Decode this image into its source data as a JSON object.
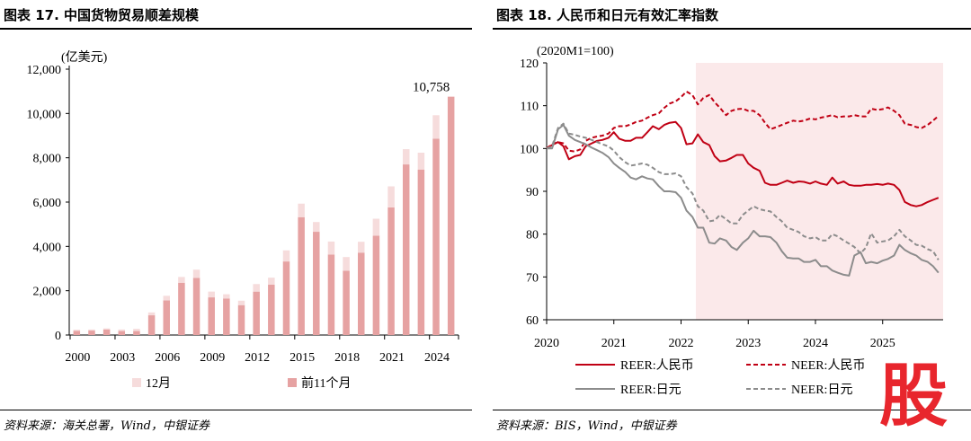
{
  "left": {
    "title": "图表 17. 中国货物贸易顺差规模",
    "source": "资料来源：海关总署，Wind，中银证券"
  },
  "right": {
    "title": "图表 18. 人民币和日元有效汇率指数",
    "source": "资料来源：BIS，Wind，中银证券"
  },
  "watermark": "股",
  "colors": {
    "dec": "#f6dcdc",
    "first11": "#e6a2a2",
    "reer_cny": "#c00014",
    "neer_cny": "#c00014",
    "reer_jpy": "#8c8c8c",
    "neer_jpy": "#8c8c8c",
    "shade": "#fbe9ea"
  },
  "chart_data": [
    {
      "type": "bar",
      "stacked": true,
      "unit_label": "(亿美元)",
      "ylim": [
        0,
        12000
      ],
      "yticks": [
        "0",
        "2,000",
        "4,000",
        "6,000",
        "8,000",
        "10,000",
        "12,000"
      ],
      "ytick_values": [
        0,
        2000,
        4000,
        6000,
        8000,
        10000,
        12000
      ],
      "xtick_labels": [
        "2000",
        "2003",
        "2006",
        "2009",
        "2012",
        "2015",
        "2018",
        "2021",
        "2024"
      ],
      "xtick_index": [
        0,
        3,
        6,
        9,
        12,
        15,
        18,
        21,
        24
      ],
      "categories": [
        "2000",
        "2001",
        "2002",
        "2003",
        "2004",
        "2005",
        "2006",
        "2007",
        "2008",
        "2009",
        "2010",
        "2011",
        "2012",
        "2013",
        "2014",
        "2015",
        "2016",
        "2017",
        "2018",
        "2019",
        "2020",
        "2021",
        "2022",
        "2023",
        "2024",
        "2025"
      ],
      "series": [
        {
          "name": "前11个月",
          "values": [
            190,
            200,
            250,
            180,
            180,
            890,
            1560,
            2360,
            2580,
            1700,
            1650,
            1350,
            1960,
            2270,
            3320,
            5320,
            4660,
            3630,
            2900,
            3720,
            4480,
            5760,
            7700,
            7470,
            8860,
            10758
          ]
        },
        {
          "name": "12月",
          "values": [
            50,
            50,
            50,
            70,
            100,
            130,
            210,
            260,
            370,
            260,
            190,
            200,
            340,
            320,
            500,
            610,
            440,
            590,
            620,
            490,
            770,
            950,
            690,
            760,
            1060,
            0
          ]
        }
      ],
      "legend": [
        "12月",
        "前11个月"
      ],
      "annotation": "10,758"
    },
    {
      "type": "line",
      "unit_label": "(2020M1=100)",
      "ylim": [
        60,
        120
      ],
      "yticks": [
        "60",
        "70",
        "80",
        "90",
        "100",
        "110",
        "120"
      ],
      "ytick_values": [
        60,
        70,
        80,
        90,
        100,
        110,
        120
      ],
      "xlim": [
        2020.0,
        2025.9
      ],
      "xtick_labels": [
        "2020",
        "2021",
        "2022",
        "2023",
        "2024",
        "2025"
      ],
      "xtick_values": [
        2020,
        2021,
        2022,
        2023,
        2024,
        2025
      ],
      "shaded_range": [
        2022.22,
        2025.9
      ],
      "series": [
        {
          "name": "REER:人民币",
          "style": "solid",
          "x": [
            2020.0,
            2020.08,
            2020.17,
            2020.25,
            2020.33,
            2020.42,
            2020.5,
            2020.58,
            2020.67,
            2020.75,
            2020.83,
            2020.92,
            2021.0,
            2021.08,
            2021.17,
            2021.25,
            2021.33,
            2021.42,
            2021.5,
            2021.58,
            2021.67,
            2021.75,
            2021.83,
            2021.92,
            2022.0,
            2022.08,
            2022.17,
            2022.25,
            2022.33,
            2022.42,
            2022.5,
            2022.58,
            2022.67,
            2022.75,
            2022.83,
            2022.92,
            2023.0,
            2023.08,
            2023.17,
            2023.25,
            2023.33,
            2023.42,
            2023.5,
            2023.58,
            2023.67,
            2023.75,
            2023.83,
            2023.92,
            2024.0,
            2024.08,
            2024.17,
            2024.25,
            2024.33,
            2024.42,
            2024.5,
            2024.58,
            2024.67,
            2024.75,
            2024.83,
            2024.92,
            2025.0,
            2025.08,
            2025.17,
            2025.25,
            2025.33,
            2025.42,
            2025.5,
            2025.58,
            2025.67,
            2025.75,
            2025.83
          ],
          "y": [
            100,
            100.8,
            101.5,
            100.5,
            97.5,
            98.2,
            98.5,
            100.5,
            101.2,
            101.8,
            102,
            102.5,
            103.8,
            102.3,
            101.8,
            101.8,
            102.5,
            102.5,
            103.8,
            105.2,
            104.5,
            105.5,
            106,
            106.2,
            104.8,
            101,
            101.2,
            103.3,
            101.5,
            100.8,
            98.2,
            97,
            97.2,
            97.8,
            98.5,
            98.5,
            96.5,
            95.5,
            94.8,
            92,
            91.5,
            91.5,
            92,
            92.5,
            92,
            92.3,
            92.2,
            91.8,
            92.3,
            91.8,
            91.5,
            93.2,
            91.8,
            92.3,
            91.5,
            91.3,
            91.3,
            91.5,
            91.5,
            91.7,
            91.5,
            91.8,
            91.5,
            90.3,
            87.5,
            86.8,
            86.5,
            86.8,
            87.5,
            88,
            88.5
          ]
        },
        {
          "name": "NEER:人民币",
          "style": "dashed",
          "x": [
            2020.0,
            2020.08,
            2020.17,
            2020.25,
            2020.33,
            2020.42,
            2020.5,
            2020.58,
            2020.67,
            2020.75,
            2020.83,
            2020.92,
            2021.0,
            2021.08,
            2021.17,
            2021.25,
            2021.33,
            2021.42,
            2021.5,
            2021.58,
            2021.67,
            2021.75,
            2021.83,
            2021.92,
            2022.0,
            2022.08,
            2022.17,
            2022.25,
            2022.33,
            2022.42,
            2022.5,
            2022.58,
            2022.67,
            2022.75,
            2022.83,
            2022.92,
            2023.0,
            2023.08,
            2023.17,
            2023.25,
            2023.33,
            2023.42,
            2023.5,
            2023.58,
            2023.67,
            2023.75,
            2023.83,
            2023.92,
            2024.0,
            2024.08,
            2024.17,
            2024.25,
            2024.33,
            2024.42,
            2024.5,
            2024.58,
            2024.67,
            2024.75,
            2024.83,
            2024.92,
            2025.0,
            2025.08,
            2025.17,
            2025.25,
            2025.33,
            2025.42,
            2025.5,
            2025.58,
            2025.67,
            2025.75,
            2025.83
          ],
          "y": [
            100,
            101,
            101.5,
            101.2,
            99.5,
            99.3,
            99.8,
            101.8,
            102.5,
            102.8,
            103,
            103.5,
            104.8,
            105.2,
            105.2,
            105.6,
            106.2,
            106.5,
            107.2,
            107.8,
            108.2,
            109.5,
            110.5,
            111,
            112,
            113.3,
            112.5,
            110.3,
            111.8,
            112.5,
            110.8,
            109.5,
            107.8,
            108.8,
            109.2,
            109.3,
            108.8,
            108.8,
            107.8,
            106,
            104.5,
            105,
            105.5,
            106,
            106.5,
            106.3,
            106.5,
            107,
            106.8,
            107.2,
            107.5,
            107.8,
            107.3,
            107.5,
            107.5,
            107.8,
            107.5,
            107.5,
            109.3,
            109,
            109.2,
            109.6,
            108.8,
            107.8,
            105.8,
            105.5,
            105,
            104.8,
            105.5,
            106.5,
            107.6
          ]
        },
        {
          "name": "REER:日元",
          "style": "solid",
          "x": [
            2020.0,
            2020.08,
            2020.17,
            2020.25,
            2020.33,
            2020.42,
            2020.5,
            2020.58,
            2020.67,
            2020.75,
            2020.83,
            2020.92,
            2021.0,
            2021.08,
            2021.17,
            2021.25,
            2021.33,
            2021.42,
            2021.5,
            2021.58,
            2021.67,
            2021.75,
            2021.83,
            2021.92,
            2022.0,
            2022.08,
            2022.17,
            2022.25,
            2022.33,
            2022.42,
            2022.5,
            2022.58,
            2022.67,
            2022.75,
            2022.83,
            2022.92,
            2023.0,
            2023.08,
            2023.17,
            2023.25,
            2023.33,
            2023.42,
            2023.5,
            2023.58,
            2023.67,
            2023.75,
            2023.83,
            2023.92,
            2024.0,
            2024.08,
            2024.17,
            2024.25,
            2024.33,
            2024.42,
            2024.5,
            2024.58,
            2024.67,
            2024.75,
            2024.83,
            2024.92,
            2025.0,
            2025.08,
            2025.17,
            2025.25,
            2025.33,
            2025.42,
            2025.5,
            2025.58,
            2025.67,
            2025.75,
            2025.83
          ],
          "y": [
            100,
            100,
            104.5,
            105.5,
            103,
            102,
            101.5,
            101,
            100.2,
            99.6,
            99,
            98,
            96.5,
            95.5,
            94.5,
            93.2,
            92.8,
            93.5,
            93,
            92.8,
            91.2,
            90,
            90,
            89.8,
            88.5,
            85.5,
            84,
            81.5,
            81.5,
            78,
            77.8,
            79,
            78.5,
            77,
            76.3,
            78,
            79,
            80.8,
            79.5,
            79.5,
            79.3,
            78,
            76,
            74.5,
            74.3,
            74.3,
            73.5,
            73.5,
            74,
            72.5,
            72.5,
            71.5,
            71,
            70.5,
            70.3,
            75,
            75.8,
            73.2,
            73.5,
            73.2,
            73.8,
            74.2,
            75,
            77.5,
            76.3,
            75.5,
            75,
            74,
            73.5,
            72.5,
            71
          ]
        },
        {
          "name": "NEER:日元",
          "style": "dashed",
          "x": [
            2020.0,
            2020.08,
            2020.17,
            2020.25,
            2020.33,
            2020.42,
            2020.5,
            2020.58,
            2020.67,
            2020.75,
            2020.83,
            2020.92,
            2021.0,
            2021.08,
            2021.17,
            2021.25,
            2021.33,
            2021.42,
            2021.5,
            2021.58,
            2021.67,
            2021.75,
            2021.83,
            2021.92,
            2022.0,
            2022.08,
            2022.17,
            2022.25,
            2022.33,
            2022.42,
            2022.5,
            2022.58,
            2022.67,
            2022.75,
            2022.83,
            2022.92,
            2023.0,
            2023.08,
            2023.17,
            2023.25,
            2023.33,
            2023.42,
            2023.5,
            2023.58,
            2023.67,
            2023.75,
            2023.83,
            2023.92,
            2024.0,
            2024.08,
            2024.17,
            2024.25,
            2024.33,
            2024.42,
            2024.5,
            2024.58,
            2024.67,
            2024.75,
            2024.83,
            2024.92,
            2025.0,
            2025.08,
            2025.17,
            2025.25,
            2025.33,
            2025.42,
            2025.5,
            2025.58,
            2025.67,
            2025.75,
            2025.83
          ],
          "y": [
            100,
            100.5,
            104.8,
            105.8,
            103.5,
            103.2,
            102.8,
            102.5,
            102,
            101.5,
            101,
            100.5,
            99.5,
            98,
            96.8,
            96,
            96.2,
            96.5,
            96.2,
            95.5,
            94.5,
            94,
            94,
            94.2,
            93.5,
            91,
            89.5,
            86.5,
            85.5,
            83,
            83.2,
            84.5,
            83.5,
            82.5,
            82.5,
            84.5,
            85.5,
            86.5,
            85.8,
            85.5,
            85.3,
            84,
            83,
            81.5,
            81,
            80.5,
            79.5,
            79,
            79.3,
            78.5,
            78.5,
            80,
            79.5,
            78.5,
            77.8,
            77,
            75.5,
            76.8,
            80.2,
            78,
            78.3,
            78.5,
            79.5,
            81,
            79.5,
            78.5,
            77.5,
            77.3,
            76.5,
            76,
            74
          ]
        }
      ],
      "legend": [
        "REER:人民币",
        "NEER:人民币",
        "REER:日元",
        "NEER:日元"
      ]
    }
  ]
}
